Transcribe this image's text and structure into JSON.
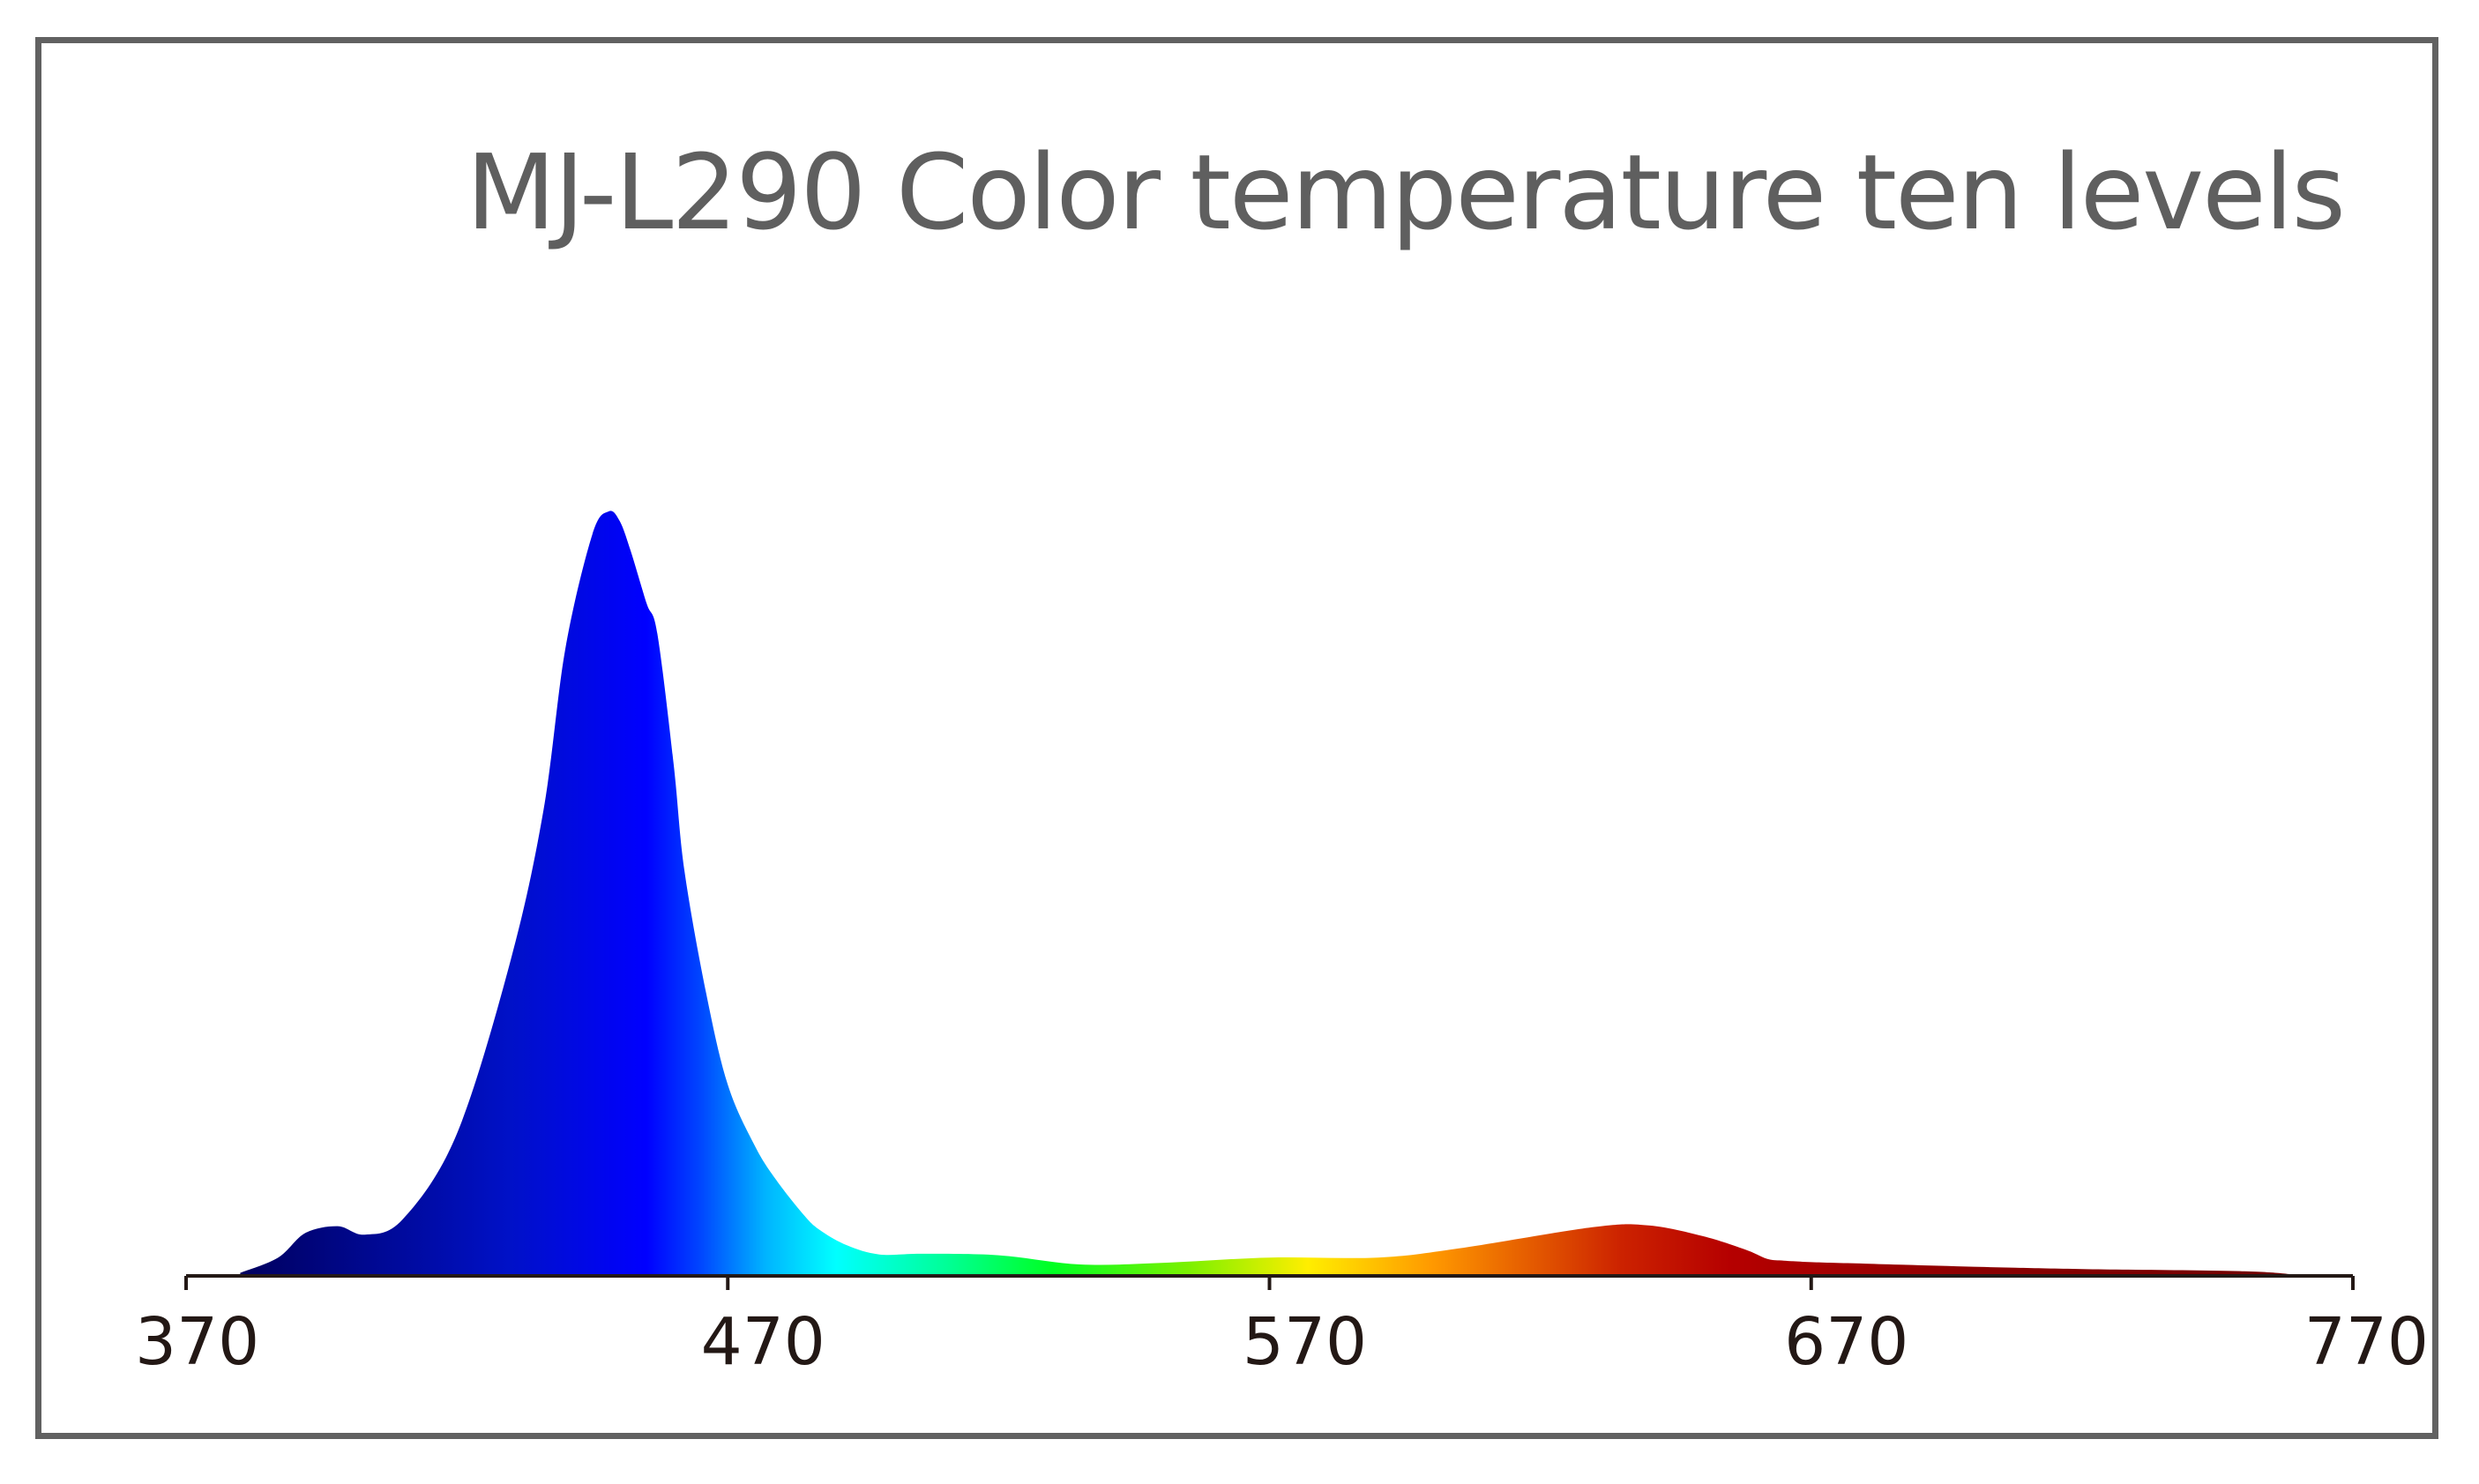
{
  "chart_data": {
    "type": "area",
    "title": "MJ-L290 Color temperature ten levels",
    "xlabel": "",
    "ylabel": "",
    "xlim": [
      370,
      770
    ],
    "ylim": [
      0,
      1
    ],
    "grid": false,
    "legend": "none",
    "x_ticks": [
      370,
      470,
      570,
      670,
      770
    ],
    "fill": "visible-spectrum gradient",
    "series": [
      {
        "x": [
          380,
          387,
          392,
          398,
          403,
          410,
          420,
          430,
          436,
          440,
          445,
          448,
          450,
          452,
          455,
          457,
          460,
          462,
          466,
          470,
          475,
          479,
          484,
          487,
          492,
          498,
          506,
          520,
          535,
          550,
          570,
          590,
          605,
          630,
          640,
          650,
          658,
          662,
          665,
          670,
          680,
          700,
          720,
          750,
          760
        ],
        "y": [
          0.004,
          0.024,
          0.056,
          0.065,
          0.054,
          0.074,
          0.186,
          0.415,
          0.61,
          0.82,
          0.97,
          1.0,
          0.988,
          0.95,
          0.88,
          0.84,
          0.67,
          0.53,
          0.37,
          0.25,
          0.17,
          0.125,
          0.08,
          0.06,
          0.04,
          0.028,
          0.029,
          0.027,
          0.015,
          0.017,
          0.024,
          0.024,
          0.036,
          0.064,
          0.066,
          0.052,
          0.034,
          0.022,
          0.02,
          0.018,
          0.016,
          0.012,
          0.009,
          0.006,
          0.001
        ]
      }
    ],
    "gradient_stops": [
      {
        "x": 380,
        "color": "#00005e"
      },
      {
        "x": 430,
        "color": "#0011c8"
      },
      {
        "x": 455,
        "color": "#0000ff"
      },
      {
        "x": 465,
        "color": "#0046ff"
      },
      {
        "x": 477,
        "color": "#00b4ff"
      },
      {
        "x": 490,
        "color": "#00ffff"
      },
      {
        "x": 510,
        "color": "#00ff99"
      },
      {
        "x": 530,
        "color": "#00ff22"
      },
      {
        "x": 555,
        "color": "#7cf000"
      },
      {
        "x": 577,
        "color": "#ffee00"
      },
      {
        "x": 600,
        "color": "#ff9900"
      },
      {
        "x": 635,
        "color": "#cc2200"
      },
      {
        "x": 655,
        "color": "#b50000"
      },
      {
        "x": 700,
        "color": "#8c0000"
      },
      {
        "x": 760,
        "color": "#6e0000"
      }
    ]
  },
  "colors": {
    "frame_border": "#616161",
    "title_text": "#5f5f5f",
    "axis": "#231815",
    "tick_text": "#231815"
  }
}
